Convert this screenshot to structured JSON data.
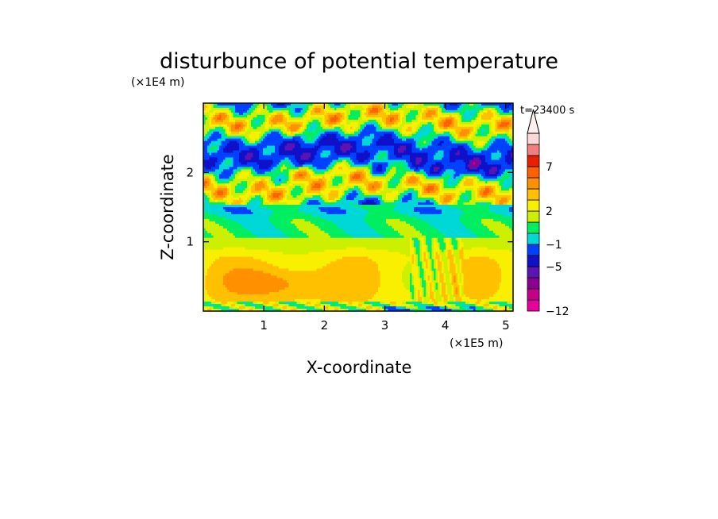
{
  "chart_data": {
    "type": "heatmap",
    "title": "disturbunce of potential temperature",
    "time_label": "t=23400 s",
    "xlabel": "X-coordinate",
    "ylabel": "Z-coordinate",
    "x_unit": "(×1E5 m)",
    "y_unit": "(×1E4 m)",
    "xlim": [
      0,
      5.12
    ],
    "ylim": [
      0,
      3.0
    ],
    "x_ticks": [
      1,
      2,
      3,
      4,
      5
    ],
    "y_ticks": [
      1,
      2
    ],
    "legend_position": "right",
    "colorbar": {
      "colors": [
        "#e8009a",
        "#c4008c",
        "#8c0090",
        "#5a14b4",
        "#1010c8",
        "#0040ff",
        "#00d8d8",
        "#00ee60",
        "#ccf000",
        "#f8f000",
        "#ffc000",
        "#ff9000",
        "#ff6000",
        "#e82000",
        "#f08080",
        "#fad8d8"
      ],
      "extend_color": "#fff0f0",
      "tick_labels": [
        {
          "text": "−12",
          "index": 0
        },
        {
          "text": "−5",
          "index": 4
        },
        {
          "text": "−1",
          "index": 6
        },
        {
          "text": "2",
          "index": 9
        },
        {
          "text": "7",
          "index": 13
        }
      ]
    }
  }
}
